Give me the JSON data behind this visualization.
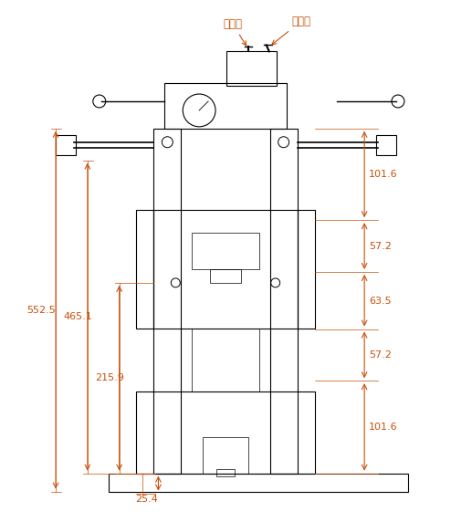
{
  "bg_color": "#ffffff",
  "line_color": "#000000",
  "dim_color": "#c8500a",
  "label_color_cn": "#c8500a",
  "figure_width": 4.94,
  "figure_height": 5.72,
  "dpi": 100,
  "annotations": {
    "chuiyokou": "出油口",
    "jinyokou": "进油口",
    "dim_552_5": "552.5",
    "dim_465_1": "465.1",
    "dim_215_9": "215.9",
    "dim_25_4": "25.4",
    "dim_101_6_top": "101.6",
    "dim_57_2_top": "57.2",
    "dim_63_5": "63.5",
    "dim_57_2_bot": "57.2",
    "dim_101_6_bot": "101.6"
  }
}
